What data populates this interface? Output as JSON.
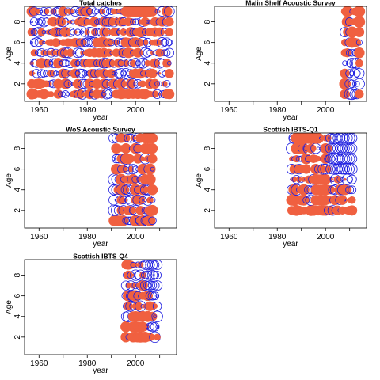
{
  "colors": {
    "positive": "#f06040",
    "negative": "#1e1ee0",
    "axis": "#000000",
    "background": "#ffffff"
  },
  "chart_data": [
    {
      "type": "bubble",
      "title": "Total catches",
      "xlabel": "year",
      "ylabel": "Age",
      "x_ticks": [
        1960,
        1980,
        2000
      ],
      "y_ticks": [
        2,
        4,
        6,
        8
      ],
      "xlim": [
        1954,
        2017
      ],
      "ylim": [
        0.3,
        9.5
      ],
      "year_range": [
        1957,
        2014
      ],
      "ages": [
        1,
        2,
        3,
        4,
        5,
        6,
        7,
        8,
        9
      ],
      "pattern": "full",
      "grid": false,
      "legend": "none"
    },
    {
      "type": "bubble",
      "title": "Malin Shelf Acoustic Survey",
      "xlabel": "year",
      "ylabel": "Age",
      "x_ticks": [
        1960,
        1980,
        2000
      ],
      "y_ticks": [
        2,
        4,
        6,
        8
      ],
      "xlim": [
        1954,
        2017
      ],
      "ylim": [
        0.3,
        9.5
      ],
      "year_range": [
        2008,
        2014
      ],
      "ages": [
        1,
        2,
        3,
        4,
        5,
        6,
        7,
        8,
        9
      ],
      "pattern": "malin",
      "grid": false,
      "legend": "none"
    },
    {
      "type": "bubble",
      "title": "WoS Acoustic Survey",
      "xlabel": "year",
      "ylabel": "Age",
      "x_ticks": [
        1960,
        1980,
        2000
      ],
      "y_ticks": [
        2,
        4,
        6,
        8
      ],
      "xlim": [
        1954,
        2017
      ],
      "ylim": [
        0.3,
        9.5
      ],
      "year_range": [
        1991,
        2007
      ],
      "ages": [
        1,
        2,
        3,
        4,
        5,
        6,
        7,
        8,
        9
      ],
      "pattern": "wos",
      "grid": false,
      "legend": "none"
    },
    {
      "type": "bubble",
      "title": "Scottish IBTS-Q1",
      "xlabel": "year",
      "ylabel": "Age",
      "x_ticks": [
        1960,
        1980,
        2000
      ],
      "y_ticks": [
        2,
        4,
        6,
        8
      ],
      "xlim": [
        1954,
        2017
      ],
      "ylim": [
        0.3,
        9.5
      ],
      "year_range": [
        1986,
        2011
      ],
      "ages": [
        2,
        3,
        4,
        5,
        6,
        7,
        8,
        9
      ],
      "pattern": "ibtsq1",
      "grid": false,
      "legend": "none"
    },
    {
      "type": "bubble",
      "title": "Scottish IBTS-Q4",
      "xlabel": "year",
      "ylabel": "Age",
      "x_ticks": [
        1960,
        1980,
        2000
      ],
      "y_ticks": [
        2,
        4,
        6,
        8
      ],
      "xlim": [
        1954,
        2017
      ],
      "ylim": [
        0.3,
        9.5
      ],
      "year_range": [
        1996,
        2009
      ],
      "ages": [
        2,
        3,
        4,
        5,
        6,
        7,
        8,
        9
      ],
      "pattern": "ibtsq4",
      "grid": false,
      "legend": "none"
    }
  ]
}
